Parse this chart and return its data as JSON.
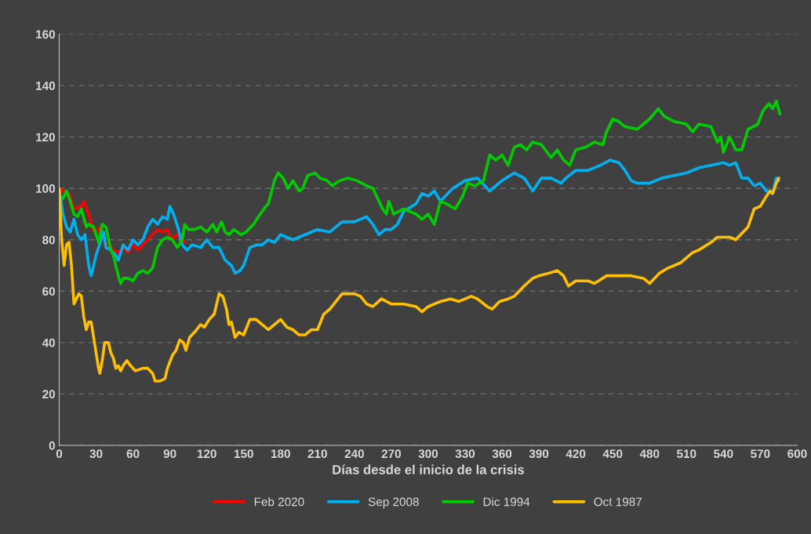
{
  "chart_data": {
    "type": "line",
    "xlabel": "Días desde el inicio de la crisis",
    "xlim": [
      0,
      600
    ],
    "xticks": [
      0,
      30,
      60,
      90,
      120,
      150,
      180,
      210,
      240,
      270,
      300,
      330,
      360,
      390,
      420,
      450,
      480,
      510,
      540,
      570,
      600
    ],
    "ylim": [
      0,
      160
    ],
    "yticks": [
      0,
      20,
      40,
      60,
      80,
      100,
      120,
      140,
      160
    ],
    "grid": "y",
    "legend": "bottom",
    "line_style": "solid",
    "marker": "none",
    "series": [
      {
        "name": "Feb 2020",
        "color": "#ff0000",
        "x": [
          0,
          3,
          8,
          12,
          18,
          20,
          24,
          27,
          30,
          33,
          36,
          40,
          44,
          48,
          52,
          56,
          60,
          64,
          68,
          72,
          76,
          80,
          84,
          88,
          92,
          96,
          100,
          102
        ],
        "values": [
          100,
          99,
          98,
          92,
          93,
          95,
          90,
          84,
          83,
          85,
          80,
          78,
          76,
          75,
          77,
          75,
          78,
          76,
          78,
          80,
          82,
          84,
          83,
          84,
          80,
          82,
          80,
          79
        ]
      },
      {
        "name": "Sep 2008",
        "color": "#00b0f0",
        "x": [
          0,
          3,
          6,
          9,
          12,
          15,
          18,
          21,
          24,
          26,
          30,
          34,
          36,
          38,
          42,
          46,
          48,
          52,
          56,
          60,
          64,
          68,
          72,
          76,
          80,
          84,
          88,
          90,
          93,
          97,
          100,
          104,
          108,
          115,
          120,
          125,
          130,
          135,
          140,
          143,
          147,
          150,
          155,
          160,
          165,
          170,
          175,
          180,
          190,
          200,
          210,
          220,
          230,
          240,
          250,
          255,
          260,
          265,
          270,
          275,
          280,
          290,
          295,
          300,
          305,
          310,
          320,
          330,
          340,
          350,
          360,
          370,
          378,
          385,
          392,
          400,
          408,
          412,
          420,
          430,
          440,
          448,
          455,
          460,
          465,
          470,
          480,
          490,
          500,
          510,
          520,
          530,
          540,
          545,
          550,
          555,
          560,
          565,
          570,
          575,
          580,
          583,
          585
        ],
        "values": [
          100,
          90,
          85,
          83,
          88,
          82,
          80,
          82,
          70,
          66,
          74,
          80,
          83,
          77,
          76,
          74,
          72,
          78,
          76,
          80,
          78,
          80,
          85,
          88,
          86,
          89,
          88,
          93,
          90,
          84,
          78,
          76,
          78,
          77,
          80,
          77,
          77,
          72,
          70,
          67,
          68,
          70,
          77,
          78,
          78,
          80,
          79,
          82,
          80,
          82,
          84,
          83,
          87,
          87,
          89,
          86,
          82,
          84,
          84,
          86,
          91,
          94,
          98,
          97,
          99,
          95,
          100,
          103,
          104,
          99,
          103,
          106,
          104,
          99,
          104,
          104,
          102,
          104,
          107,
          107,
          109,
          111,
          110,
          107,
          103,
          102,
          102,
          104,
          105,
          106,
          108,
          109,
          110,
          109,
          110,
          104,
          104,
          101,
          102,
          99,
          98,
          104,
          103
        ]
      },
      {
        "name": "Dic 1994",
        "color": "#00cc00",
        "x": [
          3,
          6,
          9,
          12,
          15,
          18,
          22,
          24,
          28,
          32,
          35,
          38,
          42,
          44,
          48,
          50,
          52,
          56,
          60,
          64,
          68,
          72,
          76,
          80,
          84,
          88,
          92,
          96,
          100,
          102,
          105,
          110,
          115,
          120,
          125,
          128,
          132,
          135,
          138,
          142,
          148,
          152,
          158,
          162,
          168,
          170,
          175,
          178,
          182,
          186,
          190,
          195,
          198,
          202,
          208,
          212,
          218,
          222,
          228,
          235,
          242,
          250,
          255,
          260,
          263,
          266,
          268,
          272,
          280,
          290,
          295,
          300,
          305,
          310,
          315,
          322,
          328,
          332,
          338,
          345,
          350,
          355,
          360,
          365,
          370,
          375,
          380,
          385,
          392,
          400,
          405,
          410,
          415,
          420,
          428,
          435,
          442,
          445,
          450,
          455,
          460,
          470,
          480,
          487,
          492,
          500,
          510,
          515,
          520,
          530,
          535,
          538,
          540,
          545,
          550,
          555,
          560,
          568,
          572,
          577,
          580,
          583,
          586
        ],
        "values": [
          96,
          99,
          95,
          90,
          89,
          92,
          85,
          86,
          85,
          79,
          86,
          85,
          76,
          74,
          66,
          63,
          65,
          65,
          64,
          67,
          68,
          67,
          69,
          77,
          80,
          81,
          80,
          77,
          80,
          86,
          84,
          84,
          85,
          83,
          86,
          83,
          87,
          83,
          82,
          84,
          82,
          83,
          86,
          89,
          93,
          94,
          103,
          106,
          104,
          100,
          103,
          99,
          100,
          105,
          106,
          104,
          103,
          101,
          103,
          104,
          103,
          101,
          100,
          95,
          92,
          90,
          95,
          90,
          92,
          90,
          88,
          90,
          86,
          95,
          94,
          92,
          97,
          102,
          101,
          103,
          113,
          111,
          113,
          109,
          116,
          117,
          115,
          118,
          117,
          112,
          115,
          111,
          109,
          115,
          116,
          118,
          117,
          122,
          127,
          126,
          124,
          123,
          127,
          131,
          128,
          126,
          125,
          122,
          125,
          124,
          118,
          120,
          114,
          120,
          115,
          115,
          123,
          125,
          130,
          133,
          131,
          134,
          129
        ]
      },
      {
        "name": "Oct 1987",
        "color": "#ffc000",
        "x": [
          0,
          2,
          4,
          6,
          8,
          10,
          12,
          14,
          16,
          18,
          20,
          22,
          24,
          26,
          28,
          30,
          32,
          33,
          35,
          37,
          40,
          42,
          44,
          46,
          48,
          50,
          52,
          55,
          58,
          62,
          68,
          72,
          76,
          78,
          82,
          86,
          88,
          92,
          95,
          98,
          101,
          103,
          106,
          110,
          115,
          118,
          122,
          126,
          130,
          133,
          136,
          138,
          140,
          143,
          146,
          150,
          155,
          160,
          165,
          170,
          175,
          180,
          185,
          190,
          195,
          200,
          205,
          210,
          215,
          220,
          225,
          230,
          240,
          245,
          250,
          255,
          262,
          270,
          280,
          290,
          295,
          300,
          310,
          318,
          325,
          335,
          340,
          348,
          352,
          358,
          365,
          370,
          378,
          385,
          390,
          398,
          405,
          410,
          414,
          420,
          430,
          435,
          445,
          455,
          465,
          475,
          480,
          482,
          488,
          495,
          505,
          515,
          520,
          530,
          535,
          545,
          550,
          560,
          565,
          570,
          575,
          578,
          580,
          583,
          585
        ],
        "values": [
          100,
          80,
          70,
          78,
          79,
          70,
          55,
          57,
          59,
          58,
          50,
          45,
          48,
          48,
          42,
          36,
          30,
          28,
          33,
          40,
          40,
          36,
          34,
          30,
          31,
          29,
          31,
          33,
          31,
          29,
          30,
          30,
          28,
          25,
          25,
          26,
          30,
          35,
          37,
          41,
          40,
          37,
          42,
          44,
          47,
          46,
          49,
          51,
          59,
          58,
          53,
          47,
          48,
          42,
          44,
          43,
          49,
          49,
          47,
          45,
          47,
          49,
          46,
          45,
          43,
          43,
          45,
          45,
          51,
          53,
          56,
          59,
          59,
          58,
          55,
          54,
          57,
          55,
          55,
          54,
          52,
          54,
          56,
          57,
          56,
          58,
          57,
          54,
          53,
          56,
          57,
          58,
          62,
          65,
          66,
          67,
          68,
          66,
          62,
          64,
          64,
          63,
          66,
          66,
          66,
          65,
          63,
          64,
          67,
          69,
          71,
          75,
          76,
          79,
          81,
          81,
          80,
          85,
          92,
          93,
          97,
          99,
          98,
          102,
          104
        ]
      }
    ]
  }
}
